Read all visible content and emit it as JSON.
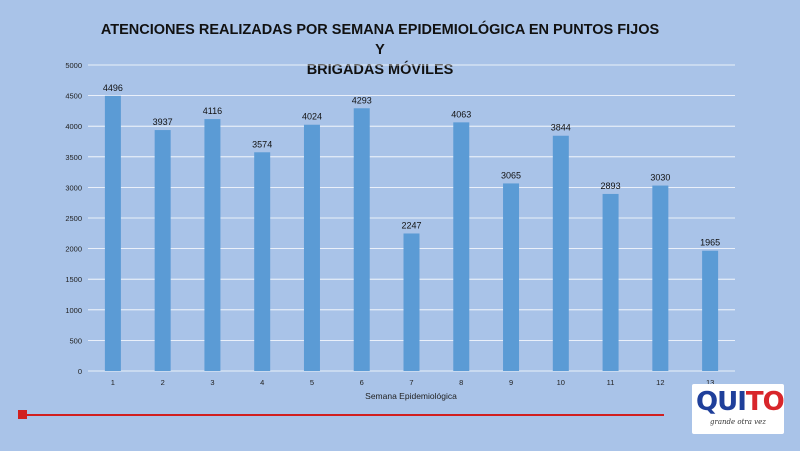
{
  "chart_data": {
    "type": "bar",
    "title_lines": [
      "ATENCIONES REALIZADAS POR SEMANA EPIDEMIOLÓGICA EN PUNTOS FIJOS Y",
      "BRIGADAS MÓVILES"
    ],
    "xlabel": "Semana Epidemiológica",
    "ylabel": "",
    "categories": [
      "1",
      "2",
      "3",
      "4",
      "5",
      "6",
      "7",
      "8",
      "9",
      "10",
      "11",
      "12",
      "13"
    ],
    "values": [
      4496,
      3937,
      4116,
      3574,
      4024,
      4293,
      2247,
      4063,
      3065,
      3844,
      2893,
      3030,
      1965
    ],
    "ylim": [
      0,
      5000
    ],
    "yticks": [
      0,
      500,
      1000,
      1500,
      2000,
      2500,
      3000,
      3500,
      4000,
      4500,
      5000
    ],
    "grid": true,
    "legend": "none",
    "bar_color": "#5b9bd5",
    "grid_color": "#ffffff"
  },
  "logo": {
    "word_main": "QUI",
    "word_accent": "TO",
    "tagline": "grande otra vez",
    "colors": {
      "blue": "#1f3f9a",
      "red": "#d8262b"
    }
  },
  "accent_color": "#d11f1f"
}
